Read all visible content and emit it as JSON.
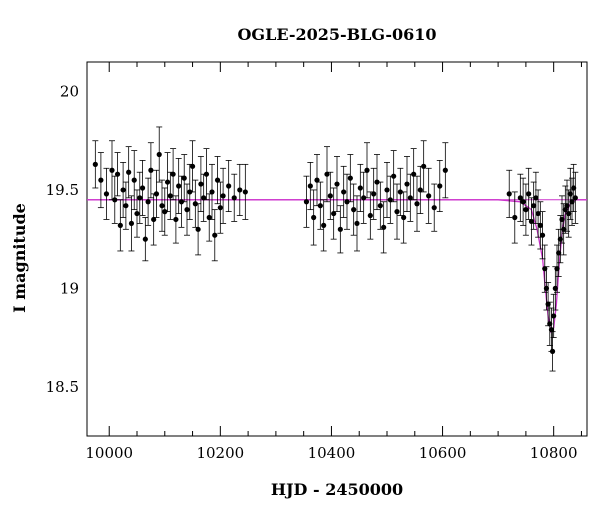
{
  "chart_data": {
    "type": "scatter",
    "title": "OGLE-2025-BLG-0610",
    "xlabel": "HJD - 2450000",
    "ylabel": "I magnitude",
    "xlim": [
      9960,
      10860
    ],
    "ylim": [
      20.15,
      18.25
    ],
    "y_inverted": true,
    "grid": false,
    "xticks": [
      10000,
      10200,
      10400,
      10600,
      10800
    ],
    "yticks": [
      18.5,
      19,
      19.5,
      20
    ],
    "ytick_labels": [
      "18.5",
      "19",
      "19.5",
      "20"
    ],
    "colors": {
      "points": "#000000",
      "model": "#cc33cc",
      "axes": "#000000"
    },
    "baseline_mag": 19.45,
    "model": {
      "name": "",
      "x": [
        9960,
        10700,
        10740,
        10760,
        10770,
        10780,
        10785,
        10790,
        10795,
        10800,
        10805,
        10810,
        10815,
        10820,
        10830,
        10840,
        10860
      ],
      "y": [
        19.45,
        19.45,
        19.44,
        19.4,
        19.3,
        19.15,
        19.0,
        18.86,
        18.78,
        18.8,
        18.92,
        19.12,
        19.28,
        19.37,
        19.43,
        19.45,
        19.45
      ]
    },
    "series": [
      {
        "name": "",
        "points": [
          [
            9975,
            19.63,
            0.12
          ],
          [
            9985,
            19.55,
            0.14
          ],
          [
            9995,
            19.48,
            0.13
          ],
          [
            10005,
            19.6,
            0.15
          ],
          [
            10010,
            19.45,
            0.12
          ],
          [
            10015,
            19.58,
            0.11
          ],
          [
            10020,
            19.32,
            0.13
          ],
          [
            10025,
            19.5,
            0.14
          ],
          [
            10030,
            19.42,
            0.12
          ],
          [
            10035,
            19.59,
            0.13
          ],
          [
            10040,
            19.33,
            0.14
          ],
          [
            10045,
            19.55,
            0.15
          ],
          [
            10050,
            19.38,
            0.12
          ],
          [
            10055,
            19.46,
            0.13
          ],
          [
            10060,
            19.51,
            0.14
          ],
          [
            10065,
            19.25,
            0.11
          ],
          [
            10070,
            19.44,
            0.12
          ],
          [
            10075,
            19.6,
            0.14
          ],
          [
            10080,
            19.35,
            0.13
          ],
          [
            10085,
            19.48,
            0.12
          ],
          [
            10090,
            19.68,
            0.14
          ],
          [
            10095,
            19.42,
            0.13
          ],
          [
            10100,
            19.39,
            0.12
          ],
          [
            10105,
            19.54,
            0.15
          ],
          [
            10110,
            19.47,
            0.12
          ],
          [
            10115,
            19.58,
            0.13
          ],
          [
            10120,
            19.35,
            0.12
          ],
          [
            10125,
            19.52,
            0.14
          ],
          [
            10130,
            19.44,
            0.13
          ],
          [
            10135,
            19.56,
            0.12
          ],
          [
            10140,
            19.4,
            0.13
          ],
          [
            10145,
            19.49,
            0.14
          ],
          [
            10150,
            19.62,
            0.13
          ],
          [
            10155,
            19.43,
            0.12
          ],
          [
            10160,
            19.3,
            0.13
          ],
          [
            10165,
            19.53,
            0.14
          ],
          [
            10170,
            19.46,
            0.12
          ],
          [
            10175,
            19.58,
            0.13
          ],
          [
            10180,
            19.36,
            0.12
          ],
          [
            10185,
            19.49,
            0.14
          ],
          [
            10190,
            19.27,
            0.13
          ],
          [
            10195,
            19.55,
            0.12
          ],
          [
            10200,
            19.41,
            0.13
          ],
          [
            10205,
            19.47,
            0.14
          ],
          [
            10215,
            19.52,
            0.13
          ],
          [
            10225,
            19.46,
            0.12
          ],
          [
            10235,
            19.5,
            0.13
          ],
          [
            10245,
            19.49,
            0.14
          ],
          [
            10355,
            19.44,
            0.13
          ],
          [
            10362,
            19.52,
            0.12
          ],
          [
            10368,
            19.36,
            0.14
          ],
          [
            10374,
            19.55,
            0.13
          ],
          [
            10380,
            19.42,
            0.12
          ],
          [
            10386,
            19.32,
            0.13
          ],
          [
            10392,
            19.58,
            0.14
          ],
          [
            10398,
            19.47,
            0.12
          ],
          [
            10404,
            19.38,
            0.13
          ],
          [
            10410,
            19.53,
            0.14
          ],
          [
            10416,
            19.3,
            0.12
          ],
          [
            10422,
            19.49,
            0.13
          ],
          [
            10428,
            19.44,
            0.14
          ],
          [
            10434,
            19.56,
            0.12
          ],
          [
            10440,
            19.4,
            0.13
          ],
          [
            10446,
            19.33,
            0.14
          ],
          [
            10452,
            19.51,
            0.12
          ],
          [
            10458,
            19.46,
            0.13
          ],
          [
            10464,
            19.6,
            0.14
          ],
          [
            10470,
            19.37,
            0.12
          ],
          [
            10476,
            19.48,
            0.13
          ],
          [
            10482,
            19.54,
            0.14
          ],
          [
            10488,
            19.42,
            0.12
          ],
          [
            10494,
            19.31,
            0.13
          ],
          [
            10500,
            19.5,
            0.14
          ],
          [
            10506,
            19.45,
            0.12
          ],
          [
            10512,
            19.57,
            0.13
          ],
          [
            10518,
            19.39,
            0.14
          ],
          [
            10524,
            19.49,
            0.12
          ],
          [
            10530,
            19.36,
            0.13
          ],
          [
            10536,
            19.53,
            0.14
          ],
          [
            10542,
            19.46,
            0.12
          ],
          [
            10548,
            19.58,
            0.13
          ],
          [
            10554,
            19.43,
            0.14
          ],
          [
            10560,
            19.5,
            0.12
          ],
          [
            10566,
            19.62,
            0.13
          ],
          [
            10575,
            19.47,
            0.14
          ],
          [
            10585,
            19.41,
            0.12
          ],
          [
            10595,
            19.52,
            0.13
          ],
          [
            10605,
            19.6,
            0.14
          ],
          [
            10720,
            19.48,
            0.12
          ],
          [
            10730,
            19.36,
            0.13
          ],
          [
            10740,
            19.46,
            0.12
          ],
          [
            10745,
            19.44,
            0.12
          ],
          [
            10750,
            19.4,
            0.13
          ],
          [
            10755,
            19.48,
            0.13
          ],
          [
            10760,
            19.34,
            0.12
          ],
          [
            10764,
            19.42,
            0.12
          ],
          [
            10768,
            19.46,
            0.13
          ],
          [
            10772,
            19.38,
            0.12
          ],
          [
            10776,
            19.32,
            0.12
          ],
          [
            10780,
            19.27,
            0.12
          ],
          [
            10784,
            19.1,
            0.12
          ],
          [
            10787,
            19.0,
            0.11
          ],
          [
            10790,
            18.92,
            0.11
          ],
          [
            10793,
            18.82,
            0.11
          ],
          [
            10796,
            18.79,
            0.11
          ],
          [
            10798,
            18.68,
            0.1
          ],
          [
            10800,
            18.86,
            0.11
          ],
          [
            10803,
            19.0,
            0.11
          ],
          [
            10806,
            19.1,
            0.12
          ],
          [
            10809,
            19.18,
            0.12
          ],
          [
            10812,
            19.25,
            0.12
          ],
          [
            10815,
            19.35,
            0.12
          ],
          [
            10818,
            19.3,
            0.13
          ],
          [
            10821,
            19.4,
            0.12
          ],
          [
            10824,
            19.42,
            0.13
          ],
          [
            10827,
            19.38,
            0.12
          ],
          [
            10830,
            19.48,
            0.13
          ],
          [
            10833,
            19.44,
            0.12
          ],
          [
            10836,
            19.51,
            0.12
          ],
          [
            10839,
            19.46,
            0.13
          ]
        ]
      }
    ]
  }
}
